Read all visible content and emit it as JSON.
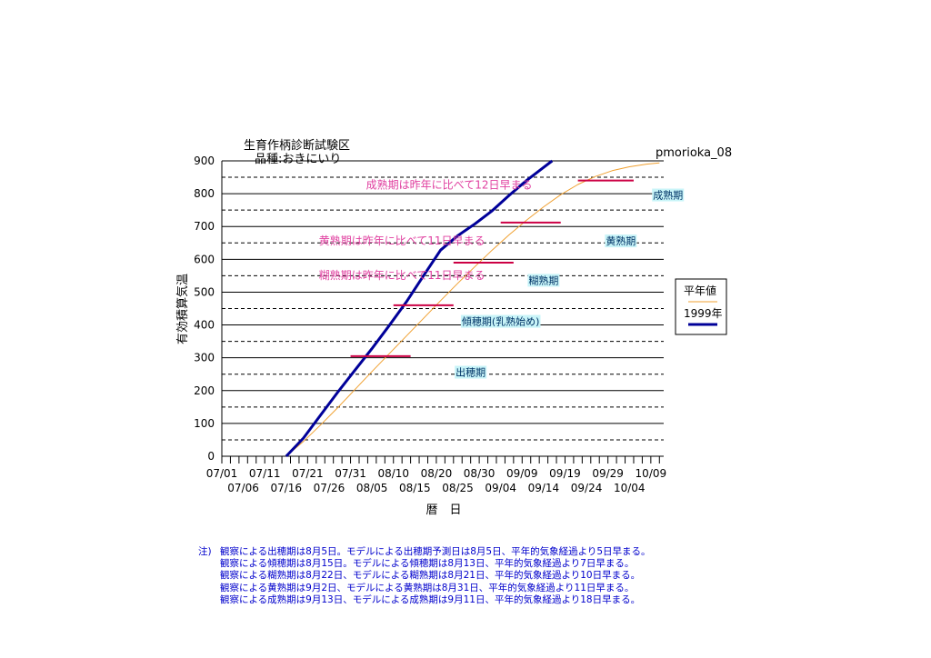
{
  "chart_data": {
    "type": "line",
    "title_line1": "生育作柄診断試験区",
    "title_line2": "品種:おきにいり",
    "station": "pmorioka_08",
    "ylabel": "有効積算気温",
    "xlabel": "暦　日",
    "ylim": [
      0,
      900
    ],
    "yticks": [
      0,
      100,
      200,
      300,
      400,
      500,
      600,
      700,
      800,
      900
    ],
    "x_start": "07/01",
    "x_end": "10/12",
    "xtick_labels_row1": [
      "07/01",
      "07/11",
      "07/21",
      "07/31",
      "08/10",
      "08/20",
      "08/30",
      "09/09",
      "09/19",
      "09/29",
      "10/09"
    ],
    "xtick_labels_row2": [
      "07/06",
      "07/16",
      "07/26",
      "08/05",
      "08/15",
      "08/25",
      "09/04",
      "09/14",
      "09/24",
      "10/04"
    ],
    "dashed_gridlines": [
      50,
      150,
      250,
      350,
      450,
      550,
      650,
      750,
      850
    ],
    "legend": {
      "position": "right",
      "entries": [
        "平年値",
        "1999年"
      ]
    },
    "series": [
      {
        "name": "平年値",
        "color": "#f0a030",
        "x": [
          "07/16",
          "07/20",
          "07/24",
          "07/28",
          "08/01",
          "08/05",
          "08/09",
          "08/13",
          "08/17",
          "08/21",
          "08/25",
          "08/29",
          "09/02",
          "09/06",
          "09/10",
          "09/14",
          "09/18",
          "09/22",
          "09/26",
          "09/30",
          "10/04",
          "10/08",
          "10/11"
        ],
        "y": [
          0,
          45,
          95,
          148,
          203,
          258,
          312,
          366,
          420,
          474,
          527,
          578,
          628,
          675,
          719,
          760,
          797,
          828,
          852,
          870,
          882,
          890,
          894
        ]
      },
      {
        "name": "1999年",
        "color": "#000099",
        "x": [
          "07/16",
          "07/20",
          "07/24",
          "07/28",
          "08/01",
          "08/05",
          "08/09",
          "08/13",
          "08/17",
          "08/21",
          "08/25",
          "08/29",
          "09/02",
          "09/06",
          "09/10",
          "09/14",
          "09/16"
        ],
        "y": [
          0,
          55,
          125,
          195,
          262,
          328,
          398,
          470,
          550,
          628,
          672,
          708,
          748,
          795,
          840,
          880,
          900
        ]
      }
    ],
    "stage_bars": [
      {
        "x_start": "07/31",
        "x_end": "08/14",
        "y": 305
      },
      {
        "x_start": "08/10",
        "x_end": "08/24",
        "y": 460
      },
      {
        "x_start": "08/24",
        "x_end": "09/07",
        "y": 590
      },
      {
        "x_start": "09/04",
        "x_end": "09/18",
        "y": 712
      },
      {
        "x_start": "09/22",
        "x_end": "10/05",
        "y": 840
      }
    ],
    "stage_labels": [
      {
        "text": "出穂期",
        "x": "08/28",
        "y": 245
      },
      {
        "text": "傾穂期(乳熟始め)",
        "x": "09/04",
        "y": 400
      },
      {
        "text": "糊熟期",
        "x": "09/14",
        "y": 525
      },
      {
        "text": "黄熟期",
        "x": "10/02",
        "y": 645
      },
      {
        "text": "成熟期",
        "x": "10/13",
        "y": 785
      }
    ],
    "annotations": [
      {
        "text": "成熟期は昨年に比べて12日早まる",
        "x": "08/23",
        "y": 815
      },
      {
        "text": "黄熟期は昨年に比べて11日早まる",
        "x": "08/12",
        "y": 645
      },
      {
        "text": "糊熟期は昨年に比べて11日早まる",
        "x": "08/12",
        "y": 540
      }
    ]
  },
  "notes": {
    "lead": "注)",
    "lines": [
      "観察による出穂期は8月5日。モデルによる出穂期予測日は8月5日、平年的気象経過より5日早まる。",
      "観察による傾穂期は8月15日。モデルによる傾穂期は8月13日、平年的気象経過より7日早まる。",
      "観察による糊熟期は8月22日、モデルによる糊熟期は8月21日、平年的気象経過より10日早まる。",
      "観察による黄熟期は9月2日、モデルによる黄熟期は8月31日、平年的気象経過より11日早まる。",
      "観察による成熟期は9月13日、モデルによる成熟期は9月11日、平年的気象経過より18日早まる。"
    ]
  },
  "colors": {
    "normal_line": "#f0a030",
    "year_line": "#000099",
    "stage_bar": "#cc0044",
    "annotation_text": "#e040a0",
    "stage_label_text": "#003366",
    "stage_label_bg": "#c8f4f8",
    "notes_text": "#0000cc"
  }
}
